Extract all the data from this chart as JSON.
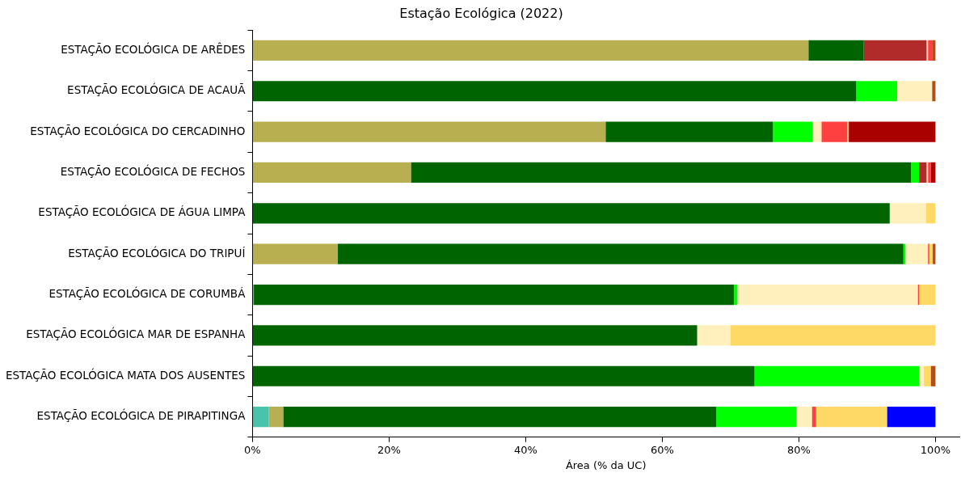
{
  "chart_data": {
    "type": "bar",
    "orientation": "horizontal",
    "stacked": true,
    "title": "Estação Ecológica (2022)",
    "xlabel": "Área (% da UC)",
    "categories": [
      "ESTAÇÃO ECOLÓGICA DE ARÊDES",
      "ESTAÇÃO ECOLÓGICA DE ACAUÃ",
      "ESTAÇÃO ECOLÓGICA DO CERCADINHO",
      "ESTAÇÃO ECOLÓGICA DE FECHOS",
      "ESTAÇÃO ECOLÓGICA DE ÁGUA LIMPA",
      "ESTAÇÃO ECOLÓGICA DO TRIPUÍ",
      "ESTAÇÃO ECOLÓGICA DE CORUMBÁ",
      "ESTAÇÃO ECOLÓGICA MAR DE ESPANHA",
      "ESTAÇÃO ECOLÓGICA MATA DOS AUSENTES",
      "ESTAÇÃO ECOLÓGICA DE PIRAPITINGA"
    ],
    "series": [
      {
        "color": "#48c4aa",
        "values": [
          null,
          null,
          null,
          null,
          null,
          null,
          0.2,
          null,
          null,
          2.4
        ]
      },
      {
        "color": "#b8af50",
        "values": [
          81.4,
          null,
          51.7,
          23.2,
          null,
          12.5,
          null,
          null,
          null,
          2.1
        ]
      },
      {
        "color": "#006400",
        "values": [
          8.1,
          88.4,
          24.5,
          73.2,
          93.3,
          82.8,
          70.3,
          65.1,
          73.5,
          63.4
        ]
      },
      {
        "color": "#00ff00",
        "values": [
          null,
          6.0,
          5.8,
          1.2,
          null,
          0.3,
          0.5,
          null,
          24.1,
          11.7
        ]
      },
      {
        "color": "#b22b2b",
        "values": [
          9.2,
          null,
          null,
          1.1,
          null,
          null,
          null,
          null,
          null,
          null
        ]
      },
      {
        "color": "#fff0be",
        "values": [
          0.2,
          5.1,
          1.3,
          0.2,
          5.3,
          3.3,
          26.4,
          4.9,
          0.7,
          2.3
        ]
      },
      {
        "color": "#ff4040",
        "values": [
          0.6,
          null,
          3.8,
          0.4,
          null,
          0.2,
          0.2,
          null,
          null,
          0.6
        ]
      },
      {
        "color": "#ffd966",
        "values": [
          null,
          null,
          0.2,
          null,
          1.4,
          0.5,
          2.4,
          30.0,
          1.0,
          10.4
        ]
      },
      {
        "color": "#a90000",
        "values": [
          null,
          null,
          12.7,
          0.7,
          null,
          null,
          null,
          null,
          null,
          null
        ]
      },
      {
        "color": "#b24d1b",
        "values": [
          0.5,
          0.5,
          null,
          null,
          null,
          0.4,
          null,
          null,
          0.7,
          null
        ]
      },
      {
        "color": "#0000ff",
        "values": [
          null,
          null,
          null,
          null,
          null,
          null,
          null,
          null,
          null,
          7.1
        ]
      }
    ],
    "xlim": [
      0,
      103.5
    ],
    "xticks": [
      {
        "value": 0,
        "label": "0%"
      },
      {
        "value": 20,
        "label": "20%"
      },
      {
        "value": 40,
        "label": "40%"
      },
      {
        "value": 60,
        "label": "60%"
      },
      {
        "value": 80,
        "label": "80%"
      },
      {
        "value": 100,
        "label": "100%"
      }
    ],
    "grid": false,
    "legend": false
  }
}
